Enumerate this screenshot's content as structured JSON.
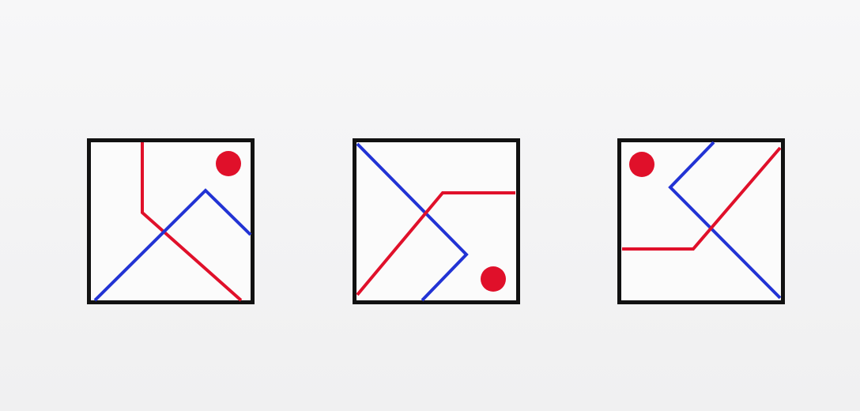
{
  "colors": {
    "background": "#f5f5f6",
    "frame": "#111111",
    "panel_fill": "#fbfbfb",
    "red": "#e0102a",
    "blue": "#2233d4"
  },
  "panels": [
    {
      "label": "",
      "icon": "square-frame-icon"
    },
    {
      "label": "",
      "icon": "square-frame-icon"
    },
    {
      "label": "",
      "icon": "square-frame-icon"
    }
  ]
}
